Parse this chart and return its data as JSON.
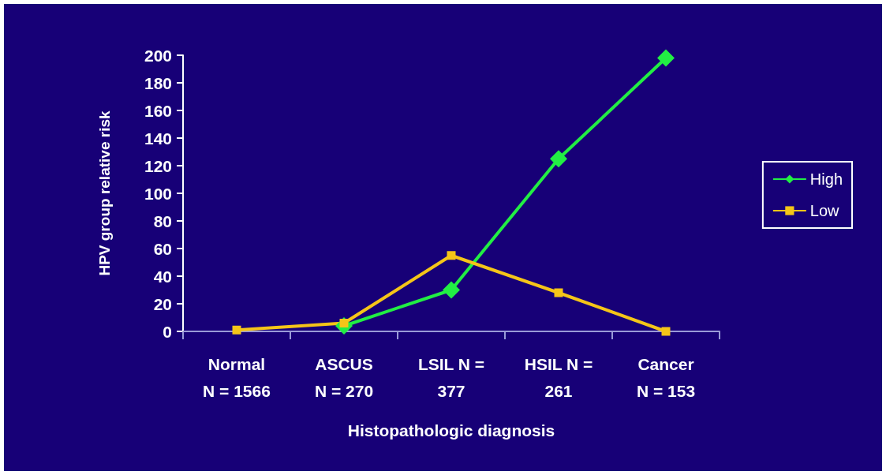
{
  "chart_data": {
    "type": "line",
    "xlabel": "Histopathologic diagnosis",
    "ylabel": "HPV group relative risk",
    "categories": [
      "Normal\nN = 1566",
      "ASCUS\nN = 270",
      "LSIL N =\n377",
      "HSIL N =\n261",
      "Cancer\nN = 153"
    ],
    "series": [
      {
        "name": "High",
        "color": "#22ee44",
        "marker": "diamond",
        "values": [
          null,
          4,
          30,
          125,
          198
        ]
      },
      {
        "name": "Low",
        "color": "#f5c518",
        "marker": "square",
        "values": [
          1,
          6,
          55,
          28,
          0
        ]
      }
    ],
    "ylim": [
      0,
      200
    ],
    "yticks": [
      0,
      20,
      40,
      60,
      80,
      100,
      120,
      140,
      160,
      180,
      200
    ],
    "grid": false,
    "legend": "right",
    "line_style": "solid"
  }
}
